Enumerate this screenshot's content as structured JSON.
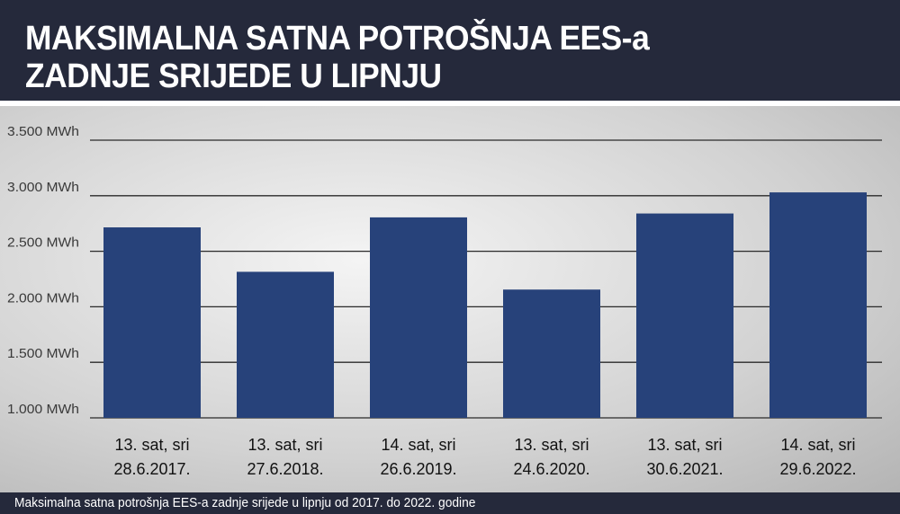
{
  "chart_data": {
    "type": "bar",
    "title": "MAKSIMALNA SATNA POTROŠNJA EES-a ZADNJE SRIJEDE U LIPNJU",
    "title_lines": [
      "MAKSIMALNA SATNA POTROŠNJA EES-a",
      "ZADNJE SRIJEDE U LIPNJU"
    ],
    "caption": "Maksimalna satna potrošnja EES-a zadnje srijede u lipnju od 2017. do 2022. godine",
    "categories": [
      [
        "13. sat, sri",
        "28.6.2017."
      ],
      [
        "13. sat, sri",
        "27.6.2018."
      ],
      [
        "14. sat, sri",
        "26.6.2019."
      ],
      [
        "13. sat, sri",
        "24.6.2020."
      ],
      [
        "13. sat, sri",
        "30.6.2021."
      ],
      [
        "14. sat, sri",
        "29.6.2022."
      ]
    ],
    "values": [
      2715,
      2315,
      2805,
      2155,
      2840,
      3030
    ],
    "unit": "MWh",
    "ylim": [
      1000,
      3500
    ],
    "yticks": [
      1000,
      1500,
      2000,
      2500,
      3000,
      3500
    ],
    "ytick_labels": [
      "1.000 MWh",
      "1.500 MWh",
      "2.000 MWh",
      "2.500 MWh",
      "3.000 MWh",
      "3.500 MWh"
    ],
    "grid": true,
    "colors": {
      "bar": "#27427a",
      "header": "#25293b",
      "grid": "#2a2a2a"
    }
  }
}
